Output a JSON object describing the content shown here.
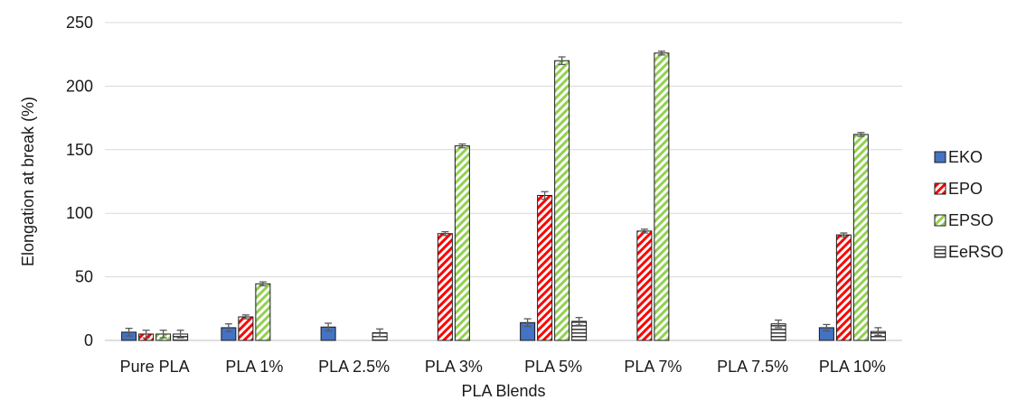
{
  "chart_data": {
    "type": "bar",
    "title": "",
    "xlabel": "PLA Blends",
    "ylabel": "Elongation at break (%)",
    "ylim": [
      0,
      250
    ],
    "yticks": [
      0,
      50,
      100,
      150,
      200,
      250
    ],
    "grid": "horizontal",
    "legend_position": "right",
    "categories": [
      "Pure PLA",
      "PLA 1%",
      "PLA 2.5%",
      "PLA 3%",
      "PLA 5%",
      "PLA 7%",
      "PLA 7.5%",
      "PLA 10%"
    ],
    "series": [
      {
        "name": "EKO",
        "color": "#4472c4",
        "pattern": "solid",
        "values": [
          6.5,
          10,
          10.5,
          null,
          14,
          null,
          null,
          10
        ],
        "errors": [
          3,
          3,
          3,
          null,
          3,
          null,
          null,
          2.5
        ]
      },
      {
        "name": "EPO",
        "color": "#ff0000",
        "pattern": "diagonal-stripes",
        "values": [
          5,
          18.5,
          null,
          84,
          114,
          86,
          null,
          83
        ],
        "errors": [
          3,
          1.5,
          null,
          1.5,
          3,
          1.5,
          null,
          1.5
        ]
      },
      {
        "name": "EPSO",
        "color": "#92d050",
        "pattern": "diagonal-stripes",
        "values": [
          5,
          44.5,
          null,
          153,
          220,
          226,
          null,
          162
        ],
        "errors": [
          3,
          1.5,
          null,
          1.5,
          3,
          1.5,
          null,
          1.5
        ]
      },
      {
        "name": "EeRSO",
        "color": "#404040",
        "pattern": "horizontal-stripes",
        "values": [
          5,
          null,
          6,
          null,
          15,
          null,
          13,
          7
        ],
        "errors": [
          3,
          null,
          3,
          null,
          3,
          null,
          3,
          3
        ]
      }
    ]
  }
}
